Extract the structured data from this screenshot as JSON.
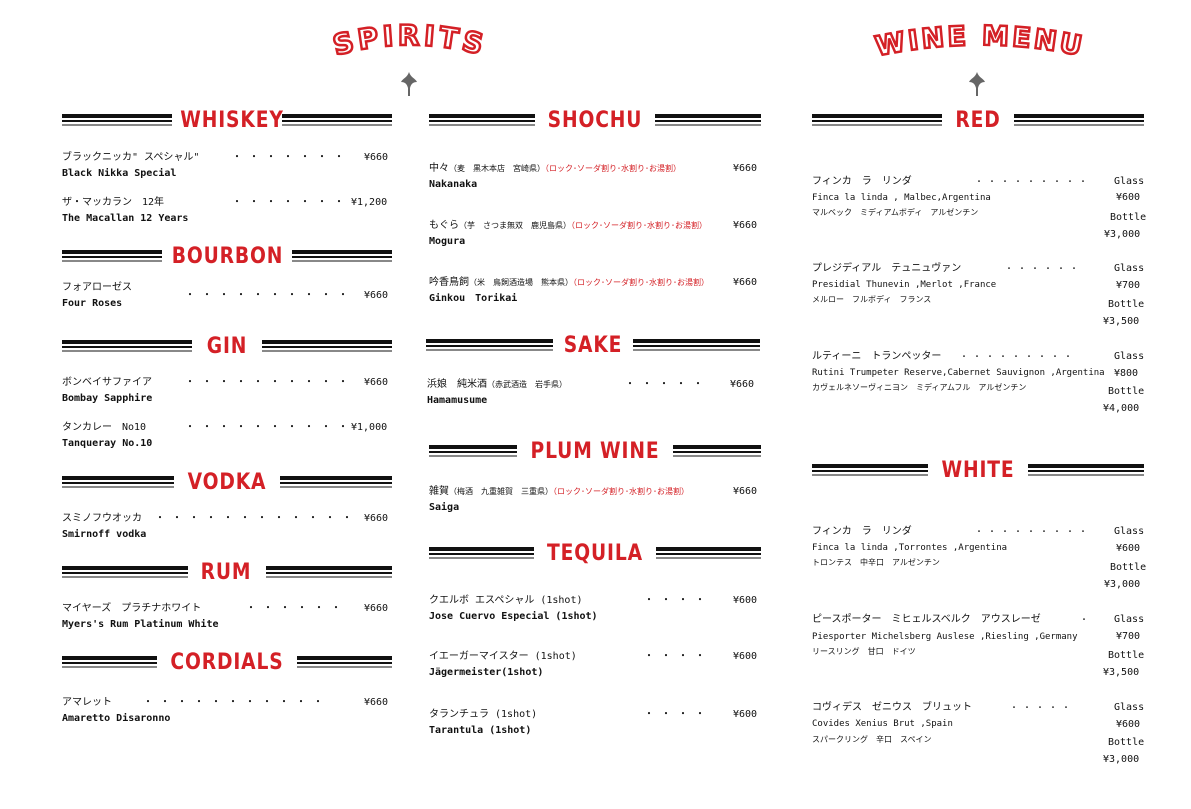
{
  "headers": {
    "spirits": "SPIRITS",
    "wine_menu": "WINE MENU"
  },
  "whiskey": {
    "title": "WHISKEY",
    "items": [
      {
        "jp": "ブラックニッカ\" スペシャル\"",
        "en": "Black Nikka Special",
        "price": "¥660",
        "dots": "・・・・・・・"
      },
      {
        "jp": "ザ・マッカラン　12年",
        "en": "The Macallan 12 Years",
        "price": "¥1,200",
        "dots": "・・・・・・・"
      }
    ]
  },
  "bourbon": {
    "title": "BOURBON",
    "items": [
      {
        "jp": "フォアローゼス",
        "en": "Four Roses",
        "price": "¥660",
        "dots": "・・・・・・・・・・"
      }
    ]
  },
  "gin": {
    "title": "GIN",
    "items": [
      {
        "jp": "ボンベイサファイア",
        "en": "Bombay Sapphire",
        "price": "¥660",
        "dots": "・・・・・・・・・・"
      },
      {
        "jp": "タンカレー　No10",
        "en": "Tanqueray No.10",
        "price": "¥1,000",
        "dots": "・・・・・・・・・・"
      }
    ]
  },
  "vodka": {
    "title": "VODKA",
    "items": [
      {
        "jp": "スミノフウオッカ",
        "en": "Smirnoff vodka",
        "price": "¥660",
        "dots": "・・・・・・・・・・・・"
      }
    ]
  },
  "rum": {
    "title": "RUM",
    "items": [
      {
        "jp": "マイヤーズ　プラチナホワイト",
        "en": "Myers's Rum Platinum White",
        "price": "¥660",
        "dots": "・・・・・・"
      }
    ]
  },
  "cordials": {
    "title": "CORDIALS",
    "items": [
      {
        "jp": "アマレット",
        "en": "Amaretto Disaronno",
        "price": "¥660",
        "dots": "・・・・・・・・・・・"
      }
    ]
  },
  "shochu": {
    "title": "SHOCHU",
    "mix": "（ロック･ソーダ割り･水割り･お湯割）",
    "items": [
      {
        "jp": "中々",
        "sub": "（麦　黒木本店　宮崎県）",
        "en": "Nakanaka",
        "price": "¥660"
      },
      {
        "jp": "もぐら",
        "sub": "（芋　さつま無双　鹿児島県）",
        "en": "Mogura",
        "price": "¥660"
      },
      {
        "jp": "吟香鳥飼",
        "sub": "（米　鳥飼酒造場　熊本県）",
        "en": "Ginkou　Torikai",
        "price": "¥660"
      }
    ]
  },
  "sake": {
    "title": "SAKE",
    "items": [
      {
        "jp": "浜娘　純米酒",
        "sub": "（赤武酒造　岩手県）",
        "en": "Hamamusume",
        "price": "¥660",
        "dots": "・・・・・"
      }
    ]
  },
  "plum": {
    "title": "PLUM WINE",
    "items": [
      {
        "jp": "雑賀",
        "sub": "（梅酒　九重雑賀　三重県）",
        "mix": "（ロック･ソーダ割り･水割り･お湯割）",
        "en": "Saiga",
        "price": "¥660"
      }
    ]
  },
  "tequila": {
    "title": "TEQUILA",
    "items": [
      {
        "jp": "クエルボ エスペシャル (1shot)",
        "en": "Jose Cuervo Especial (1shot)",
        "price": "¥600",
        "dots": "・・・・"
      },
      {
        "jp": "イエーガーマイスター (1shot)",
        "en": "Jägermeister(1shot)",
        "price": "¥600",
        "dots": "・・・・"
      },
      {
        "jp": "タランチュラ (1shot)",
        "en": "Tarantula (1shot)",
        "price": "¥600",
        "dots": "・・・・"
      }
    ]
  },
  "red": {
    "title": "RED",
    "glass_label": "Glass",
    "bottle_label": "Bottle",
    "items": [
      {
        "jp": "フィンカ　ラ　リンダ",
        "en": "Finca la linda , Malbec,Argentina",
        "sub": "マルベック　ミディアムボディ　アルゼンチン",
        "glass": "¥600",
        "bottle": "¥3,000",
        "dots": "・・・・・・・・・"
      },
      {
        "jp": "プレジディアル　テュニュヴァン",
        "en": "Presidial Thunevin ,Merlot ,France",
        "sub": "メルロー　フルボディ　フランス",
        "glass": "¥700",
        "bottle": "¥3,500",
        "dots": "・・・・・・"
      },
      {
        "jp": "ルティーニ　トランペッター",
        "en": "Rutini Trumpeter Reserve,Cabernet Sauvignon ,Argentina",
        "sub": "カヴェルネソーヴィニヨン　ミディアムフル　アルゼンチン",
        "glass": "¥800",
        "bottle": "¥4,000",
        "dots": "・・・・・・・・・"
      }
    ]
  },
  "white": {
    "title": "WHITE",
    "glass_label": "Glass",
    "bottle_label": "Bottle",
    "items": [
      {
        "jp": "フィンカ　ラ　リンダ",
        "en": "Finca la linda ,Torrontes ,Argentina",
        "sub": "トロンテス　中辛口　アルゼンチン",
        "glass": "¥600",
        "bottle": "¥3,000",
        "dots": "・・・・・・・・・"
      },
      {
        "jp": "ピースポーター　ミヒェルスベルク　アウスレーゼ",
        "en": "Piesporter Michelsberg Auslese ,Riesling ,Germany",
        "sub": "リースリング　甘口　ドイツ",
        "glass": "¥700",
        "bottle": "¥3,500",
        "dots": "・"
      },
      {
        "jp": "コヴィデス　ゼニウス　ブリュット",
        "en": "Covides Xenius Brut ,Spain",
        "sub": "スパークリング　辛口　スペイン",
        "glass": "¥600",
        "bottle": "¥3,000",
        "dots": "・・・・・"
      }
    ]
  }
}
